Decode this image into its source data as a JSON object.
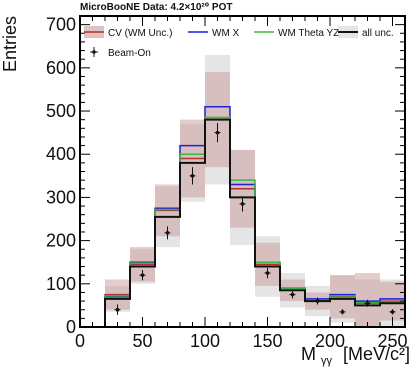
{
  "chart_data": {
    "type": "histogram",
    "top_label": "MicroBooNE Data: 4.2×10²⁰ POT",
    "xlabel_main": "M",
    "xlabel_sub": "γγ",
    "xlabel_unit": "[MeV/c²]",
    "ylabel": "Entries",
    "xlim": [
      0,
      260
    ],
    "ylim": [
      0,
      720
    ],
    "x_ticks": [
      0,
      50,
      100,
      150,
      200,
      250
    ],
    "y_ticks": [
      0,
      100,
      200,
      300,
      400,
      500,
      600,
      700
    ],
    "bin_edges": [
      20,
      40,
      60,
      80,
      100,
      120,
      140,
      160,
      180,
      200,
      220,
      240,
      260
    ],
    "colors": {
      "cv": "#b03030",
      "cv_band": "#c99a9a",
      "wm_x": "#1f1fdd",
      "wm_theta": "#39b839",
      "all": "#111111",
      "all_band": "#d3d3d3",
      "data": "#111111"
    },
    "legend": {
      "cv": "CV (WM Unc.)",
      "wm_x": "WM X",
      "wm_theta": "WM Theta YZ",
      "all": "all unc.",
      "data": "Beam-On"
    },
    "series": [
      {
        "name": "CV (WM Unc.)",
        "values": [
          75,
          145,
          270,
          390,
          480,
          320,
          145,
          85,
          60,
          70,
          55,
          60
        ]
      },
      {
        "name": "WM X",
        "values": [
          70,
          150,
          275,
          420,
          510,
          330,
          150,
          90,
          65,
          75,
          60,
          65
        ]
      },
      {
        "name": "WM Theta YZ",
        "values": [
          72,
          148,
          272,
          400,
          485,
          340,
          150,
          90,
          62,
          72,
          56,
          58
        ]
      },
      {
        "name": "all unc.",
        "values": [
          65,
          140,
          255,
          380,
          480,
          300,
          140,
          85,
          60,
          65,
          50,
          55
        ]
      }
    ],
    "cv_band_err": [
      35,
      40,
      60,
      90,
      110,
      90,
      50,
      25,
      20,
      50,
      70,
      45
    ],
    "all_band_err": [
      30,
      40,
      70,
      90,
      150,
      110,
      70,
      40,
      35,
      55,
      60,
      55
    ],
    "data_points": {
      "name": "Beam-On",
      "x": [
        30,
        50,
        70,
        90,
        110,
        130,
        150,
        170,
        190,
        210,
        230,
        250
      ],
      "y": [
        40,
        120,
        218,
        350,
        450,
        285,
        125,
        75,
        60,
        35,
        55,
        35
      ],
      "err": [
        12,
        12,
        15,
        20,
        22,
        18,
        12,
        9,
        8,
        6,
        8,
        6
      ]
    }
  }
}
